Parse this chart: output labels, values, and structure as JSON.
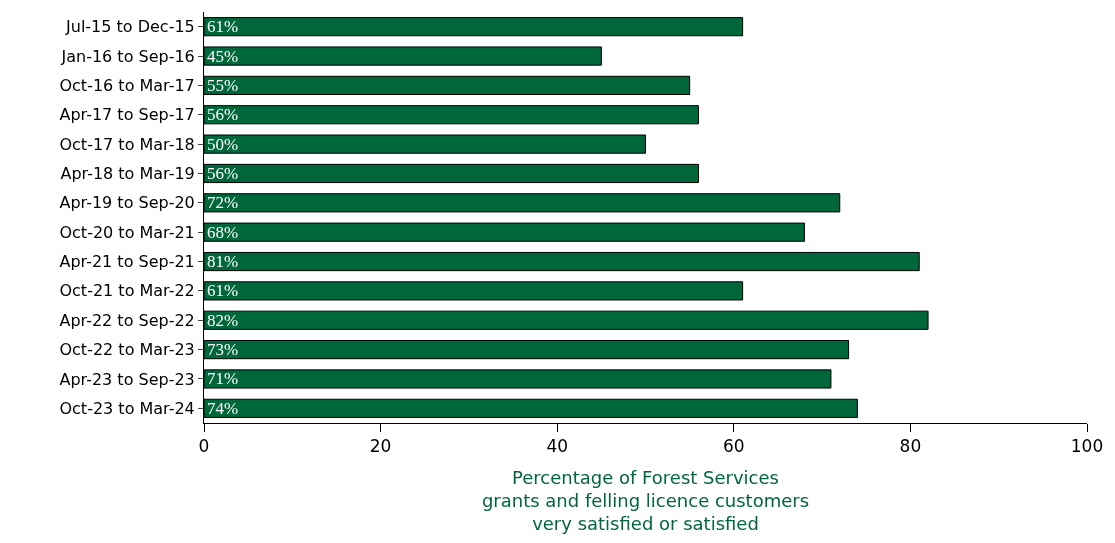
{
  "chart_data": {
    "type": "bar",
    "orientation": "horizontal",
    "categories": [
      "Jul-15 to Dec-15",
      "Jan-16 to Sep-16",
      "Oct-16 to Mar-17",
      "Apr-17 to Sep-17",
      "Oct-17 to Mar-18",
      "Apr-18 to Mar-19",
      "Apr-19 to Sep-20",
      "Oct-20 to Mar-21",
      "Apr-21 to Sep-21",
      "Oct-21 to Mar-22",
      "Apr-22 to Sep-22",
      "Oct-22 to Mar-23",
      "Apr-23 to Sep-23",
      "Oct-23 to Mar-24"
    ],
    "values": [
      61,
      45,
      55,
      56,
      50,
      56,
      72,
      68,
      81,
      61,
      82,
      73,
      71,
      74
    ],
    "value_labels": [
      "61%",
      "45%",
      "55%",
      "56%",
      "50%",
      "56%",
      "72%",
      "68%",
      "81%",
      "61%",
      "82%",
      "73%",
      "71%",
      "74%"
    ],
    "color": "#00673a",
    "xlabel": "Percentage of Forest Services\ngrants and felling licence customers\nvery satisfied or satisfied",
    "xlim": [
      0,
      100
    ],
    "xticks": [
      0,
      20,
      40,
      60,
      80,
      100
    ]
  }
}
